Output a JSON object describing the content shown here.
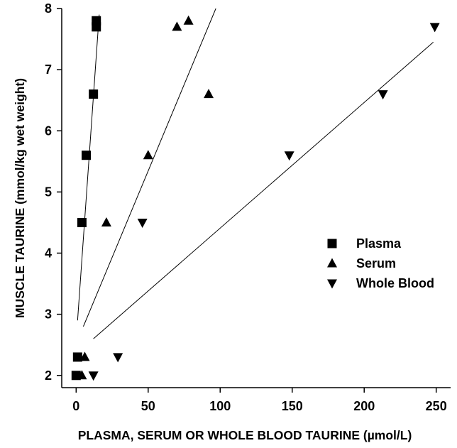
{
  "chart_data": {
    "type": "scatter",
    "title": "",
    "xlabel": "PLASMA, SERUM OR WHOLE BLOOD TAURINE (µmol/L)",
    "ylabel": "MUSCLE  TAURINE (mmol/kg wet weight)",
    "xlim": [
      -10,
      260
    ],
    "ylim": [
      1.8,
      8.0
    ],
    "xticks": [
      0,
      50,
      100,
      150,
      200,
      250
    ],
    "yticks": [
      2,
      3,
      4,
      5,
      6,
      7,
      8
    ],
    "xtick_labels": [
      "0",
      "50",
      "100",
      "150",
      "200",
      "250"
    ],
    "ytick_labels": [
      "2",
      "3",
      "4",
      "5",
      "6",
      "7",
      "8"
    ],
    "grid": false,
    "legend_position": "right",
    "series": [
      {
        "name": "Plasma",
        "marker": "square",
        "points": [
          [
            0,
            2.0
          ],
          [
            1,
            2.3
          ],
          [
            4,
            4.5
          ],
          [
            7,
            5.6
          ],
          [
            12,
            6.6
          ],
          [
            14,
            7.7
          ],
          [
            14,
            7.8
          ]
        ],
        "fit_line": [
          [
            1,
            2.9
          ],
          [
            16,
            7.9
          ]
        ]
      },
      {
        "name": "Serum",
        "marker": "triangle-up",
        "points": [
          [
            4,
            2.0
          ],
          [
            6,
            2.3
          ],
          [
            21,
            4.5
          ],
          [
            50,
            5.6
          ],
          [
            70,
            7.7
          ],
          [
            78,
            7.8
          ],
          [
            92,
            6.6
          ]
        ],
        "fit_line": [
          [
            5,
            2.8
          ],
          [
            97,
            8.0
          ]
        ]
      },
      {
        "name": "Whole Blood",
        "marker": "triangle-down",
        "points": [
          [
            12,
            2.0
          ],
          [
            29,
            2.3
          ],
          [
            46,
            4.5
          ],
          [
            148,
            5.6
          ],
          [
            213,
            6.6
          ],
          [
            249,
            7.7
          ]
        ],
        "fit_line": [
          [
            12,
            2.6
          ],
          [
            248,
            7.45
          ]
        ]
      }
    ]
  }
}
